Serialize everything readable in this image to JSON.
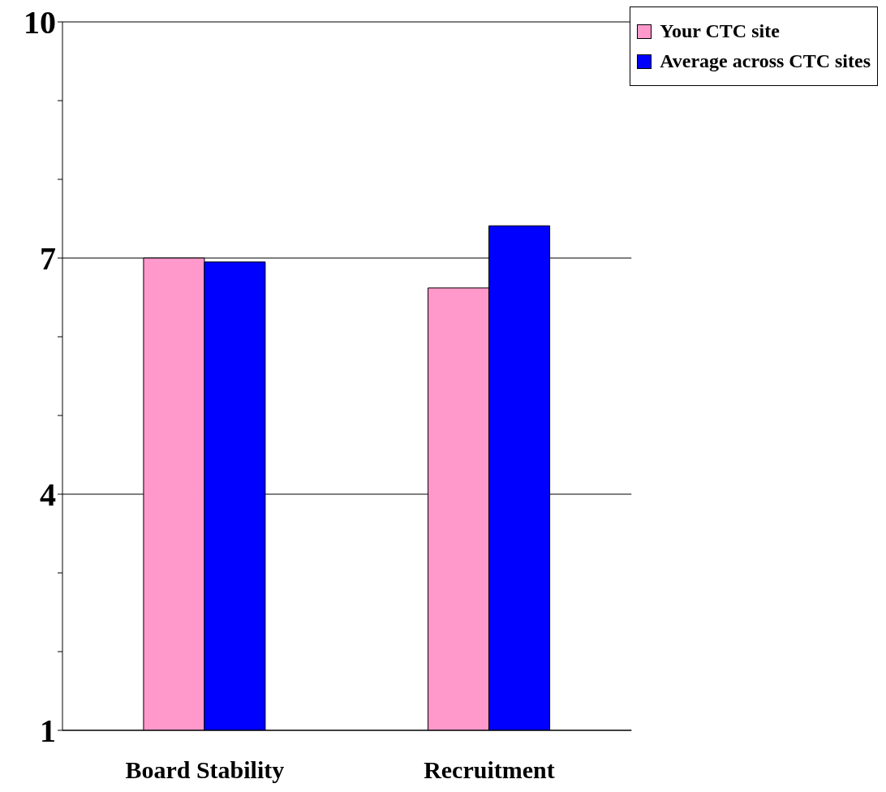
{
  "chart_data": {
    "type": "bar",
    "categories": [
      "Board Stability",
      "Recruitment"
    ],
    "series": [
      {
        "name": "Your CTC site",
        "color": "#ff99cc",
        "values": [
          7.0,
          6.62
        ]
      },
      {
        "name": "Average across CTC sites",
        "color": "#0000ff",
        "values": [
          6.95,
          7.41
        ]
      }
    ],
    "ylim": [
      1,
      10
    ],
    "yticks": [
      1,
      {
        "value": 2,
        "label": null
      },
      {
        "value": 3,
        "label": null
      },
      4,
      {
        "value": 5,
        "label": null
      },
      {
        "value": 6,
        "label": null
      },
      7,
      {
        "value": 8,
        "label": null
      },
      {
        "value": 9,
        "label": null
      },
      10
    ],
    "grid": "y",
    "legend": "top right"
  }
}
